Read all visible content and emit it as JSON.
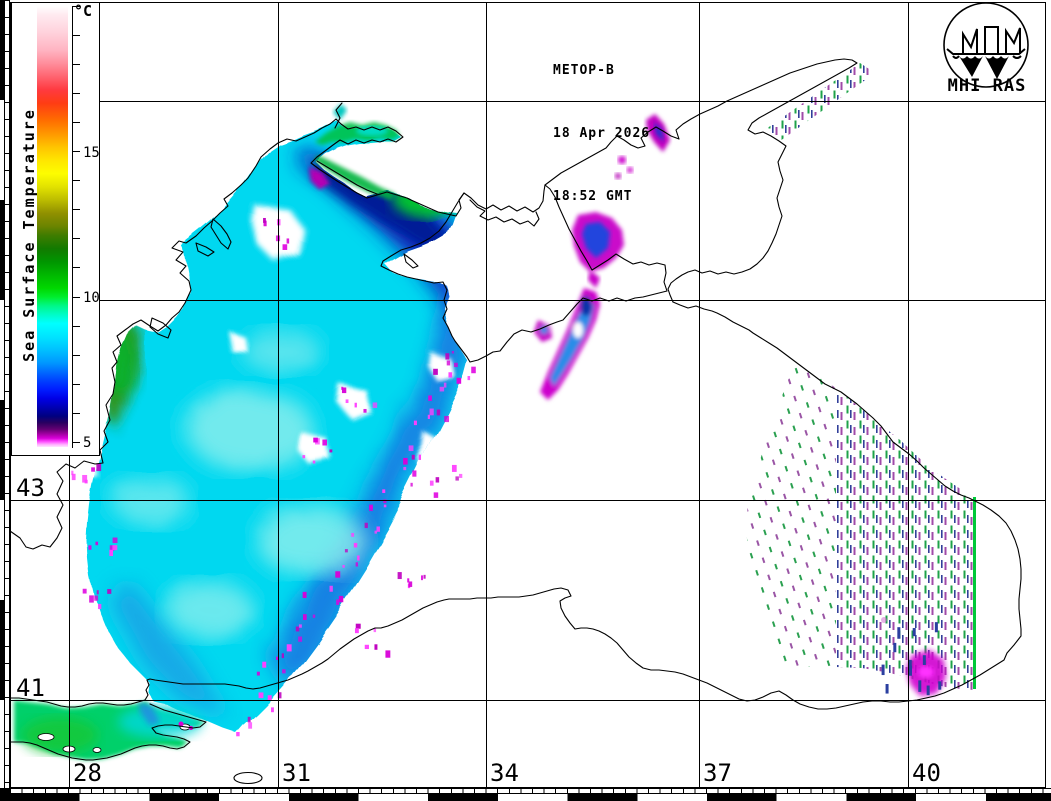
{
  "header": {
    "satellite": "METOP-B",
    "date": "18 Apr 2026",
    "time": "18:52 GMT"
  },
  "logo": {
    "label": "MHI RAS"
  },
  "colorbar": {
    "title": "Sea Surface Temperature",
    "unit": "°C",
    "tick_labels": [
      "15",
      "10",
      "5"
    ],
    "range_c": [
      5,
      20
    ],
    "gradient": [
      [
        "0%",
        "#ffffff"
      ],
      [
        "2%",
        "#ffeaf0"
      ],
      [
        "6%",
        "#ffd2dc"
      ],
      [
        "10%",
        "#ffb4c2"
      ],
      [
        "13%",
        "#ff8e9c"
      ],
      [
        "16%",
        "#ff6470"
      ],
      [
        "19%",
        "#ff3a40"
      ],
      [
        "22%",
        "#ff3c14"
      ],
      [
        "26%",
        "#ff6e00"
      ],
      [
        "29%",
        "#ff9800"
      ],
      [
        "32%",
        "#ffc400"
      ],
      [
        "35%",
        "#ffe600"
      ],
      [
        "38%",
        "#fdfd00"
      ],
      [
        "41%",
        "#e2e200"
      ],
      [
        "44%",
        "#bcbc00"
      ],
      [
        "47%",
        "#909000"
      ],
      [
        "50%",
        "#6a8400"
      ],
      [
        "52%",
        "#3f7c00"
      ],
      [
        "55%",
        "#127a00"
      ],
      [
        "58%",
        "#009600"
      ],
      [
        "61%",
        "#00b800"
      ],
      [
        "64%",
        "#00d800"
      ],
      [
        "66%",
        "#00ee2e"
      ],
      [
        "68%",
        "#00f788"
      ],
      [
        "70%",
        "#00fcc8"
      ],
      [
        "72%",
        "#00ffff"
      ],
      [
        "75%",
        "#00e4ff"
      ],
      [
        "78%",
        "#00c0ff"
      ],
      [
        "81%",
        "#0096ff"
      ],
      [
        "83%",
        "#006aff"
      ],
      [
        "85%",
        "#0040ff"
      ],
      [
        "87%",
        "#001cff"
      ],
      [
        "89%",
        "#0000e6"
      ],
      [
        "91%",
        "#0000b4"
      ],
      [
        "93%",
        "#000080"
      ],
      [
        "94.5%",
        "#2a0060"
      ],
      [
        "96%",
        "#640074"
      ],
      [
        "97%",
        "#a000a0"
      ],
      [
        "98%",
        "#d800d8"
      ],
      [
        "98.8%",
        "#ff50ff"
      ],
      [
        "99.4%",
        "#ffaaff"
      ],
      [
        "100%",
        "#ffe6ff"
      ]
    ]
  },
  "axes": {
    "lat_labels": [
      "43",
      "41"
    ],
    "lon_labels": [
      "28",
      "31",
      "34",
      "37",
      "40"
    ]
  },
  "map": {
    "region": "Black Sea, Sea of Azov and Sea of Marmara sea-surface-temperature field"
  }
}
